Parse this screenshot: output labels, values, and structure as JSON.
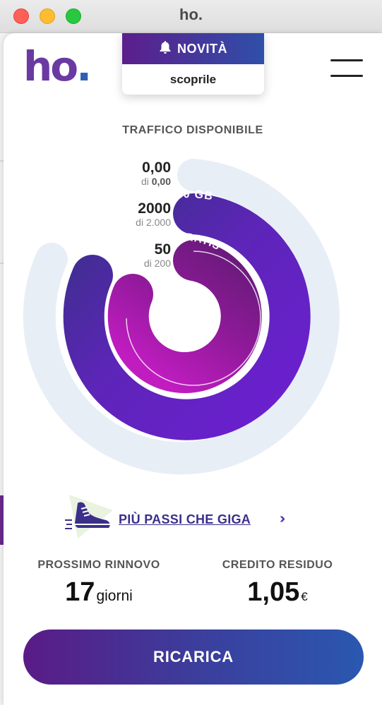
{
  "window": {
    "title": "ho."
  },
  "header": {
    "logo_text": "ho",
    "logo_dot": ".",
    "novita_label": "NOVITÀ",
    "novita_link": "scoprile"
  },
  "traffic": {
    "title": "TRAFFICO DISPONIBILE",
    "rings": [
      {
        "value": "0,00",
        "of_prefix": "di",
        "of_value": "0,00",
        "remaining": 0,
        "total": 0,
        "arc_label": ""
      },
      {
        "value": "2000",
        "of_prefix": "di",
        "of_value": "2.000",
        "remaining": 2000,
        "total": 2000,
        "arc_label": "40 GB"
      },
      {
        "value": "50",
        "of_prefix": "di",
        "of_value": "200",
        "remaining": 50,
        "total": 200,
        "arc_label": "GRATIS"
      }
    ]
  },
  "promo": {
    "link_text": "PIÙ PASSI CHE GIGA",
    "arrows": "›››"
  },
  "stats": {
    "renewal_label": "PROSSIMO RINNOVO",
    "renewal_value": "17",
    "renewal_unit": "giorni",
    "credit_label": "CREDITO RESIDUO",
    "credit_value": "1,05",
    "credit_unit": "€"
  },
  "actions": {
    "recharge_label": "RICARICA"
  },
  "colors": {
    "brand_purple": "#6a3aa2",
    "brand_blue": "#2f5fb5",
    "track": "#e8eef6"
  }
}
